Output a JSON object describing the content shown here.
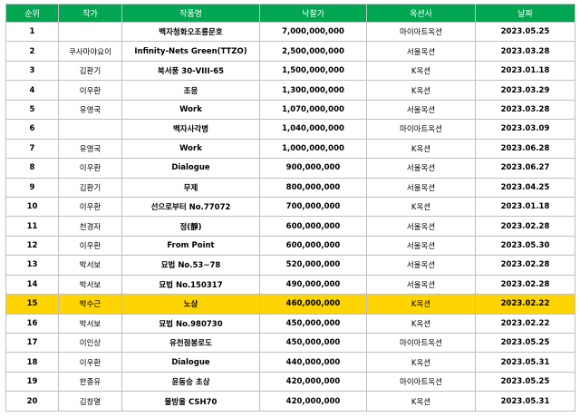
{
  "headers": {
    "rank": "순위",
    "artist": "작가",
    "title": "작품명",
    "price": "낙찰가",
    "auction": "옥션사",
    "date": "날짜"
  },
  "rows": [
    {
      "rank": "1",
      "artist": "",
      "title": "백자청화오조룡문호",
      "price": "7,000,000,000",
      "auction": "마이아트옥션",
      "date": "2023.05.25"
    },
    {
      "rank": "2",
      "artist": "쿠사마야요이",
      "title": "Infinity-Nets Green(TTZO)",
      "price": "2,500,000,000",
      "auction": "서울옥션",
      "date": "2023.03.28"
    },
    {
      "rank": "3",
      "artist": "김환기",
      "title": "북서풍 30-VIII-65",
      "price": "1,500,000,000",
      "auction": "K옥션",
      "date": "2023.01.18"
    },
    {
      "rank": "4",
      "artist": "이우환",
      "title": "조응",
      "price": "1,300,000,000",
      "auction": "K옥션",
      "date": "2023.03.29"
    },
    {
      "rank": "5",
      "artist": "유영국",
      "title": "Work",
      "price": "1,070,000,000",
      "auction": "서울옥션",
      "date": "2023.03.28"
    },
    {
      "rank": "6",
      "artist": "",
      "title": "백자사각병",
      "price": "1,040,000,000",
      "auction": "마이아트옥션",
      "date": "2023.03.09"
    },
    {
      "rank": "7",
      "artist": "유영국",
      "title": "Work",
      "price": "1,000,000,000",
      "auction": "K옥션",
      "date": "2023.06.28"
    },
    {
      "rank": "8",
      "artist": "이우환",
      "title": "Dialogue",
      "price": "900,000,000",
      "auction": "서울옥션",
      "date": "2023.06.27"
    },
    {
      "rank": "9",
      "artist": "김환기",
      "title": "무제",
      "price": "800,000,000",
      "auction": "서울옥션",
      "date": "2023.04.25"
    },
    {
      "rank": "10",
      "artist": "이우환",
      "title": "선으로부터 No.77072",
      "price": "700,000,000",
      "auction": "K옥션",
      "date": "2023.01.18"
    },
    {
      "rank": "11",
      "artist": "천경자",
      "title": "정(靜)",
      "price": "600,000,000",
      "auction": "서울옥션",
      "date": "2023.02.28"
    },
    {
      "rank": "12",
      "artist": "이우환",
      "title": "From Point",
      "price": "600,000,000",
      "auction": "서울옥션",
      "date": "2023.05.30"
    },
    {
      "rank": "13",
      "artist": "박서보",
      "title": "묘법 No.53~78",
      "price": "520,000,000",
      "auction": "서울옥션",
      "date": "2023.02.28"
    },
    {
      "rank": "14",
      "artist": "박서보",
      "title": "묘법 No.150317",
      "price": "490,000,000",
      "auction": "서울옥션",
      "date": "2023.02.28"
    },
    {
      "rank": "15",
      "artist": "박수근",
      "title": "노상",
      "price": "460,000,000",
      "auction": "K옥션",
      "date": "2023.02.22"
    },
    {
      "rank": "16",
      "artist": "박서보",
      "title": "묘법 No.980730",
      "price": "450,000,000",
      "auction": "K옥션",
      "date": "2023.02.22"
    },
    {
      "rank": "17",
      "artist": "이인상",
      "title": "유천점봉로도",
      "price": "450,000,000",
      "auction": "마이아트옥션",
      "date": "2023.05.25"
    },
    {
      "rank": "18",
      "artist": "이우환",
      "title": "Dialogue",
      "price": "440,000,000",
      "auction": "K옥션",
      "date": "2023.05.31"
    },
    {
      "rank": "19",
      "artist": "한종유",
      "title": "윤동승 초상",
      "price": "420,000,000",
      "auction": "마이아트옥션",
      "date": "2023.05.25"
    },
    {
      "rank": "20",
      "artist": "김창열",
      "title": "물방울 CSH70",
      "price": "420,000,000",
      "auction": "K옥션",
      "date": "2023.05.31"
    }
  ],
  "highlight_rank": "15",
  "colors": {
    "header_bg": "#00a651",
    "highlight_bg": "#ffd400",
    "border": "#bfbfbf"
  }
}
